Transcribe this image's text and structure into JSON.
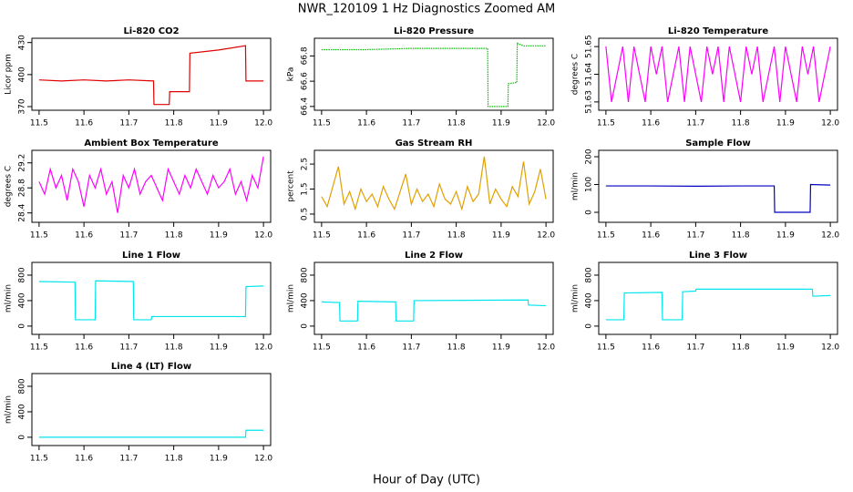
{
  "title": "NWR_120109  1 Hz Diagnostics Zoomed AM",
  "xlabel": "Hour of Day (UTC)",
  "chart_data": [
    {
      "type": "line",
      "title": "Li-820 CO2",
      "ylabel": "Licor ppm",
      "color": "#e00000",
      "x": [
        11.5,
        11.55,
        11.6,
        11.65,
        11.7,
        11.755,
        11.756,
        11.79,
        11.791,
        11.835,
        11.836,
        11.9,
        11.96,
        11.961,
        12.0
      ],
      "values": [
        395,
        394,
        395,
        394,
        395,
        394,
        372,
        372,
        384,
        384,
        420,
        423,
        427,
        394,
        394
      ],
      "xlim": [
        11.484,
        12.016
      ],
      "xticks": [
        11.5,
        11.6,
        11.7,
        11.8,
        11.9,
        {
          "value": 12,
          "label": "12.0"
        }
      ],
      "ylim": [
        366.6,
        434
      ],
      "yticks": [
        370,
        400,
        430
      ]
    },
    {
      "type": "line",
      "title": "Li-820 Pressure",
      "ylabel": "kPa",
      "color": "#00c000",
      "line_style": "dotted",
      "x": [
        11.5,
        11.6,
        11.7,
        11.8,
        11.87,
        11.871,
        11.915,
        11.916,
        11.935,
        11.936,
        11.95,
        12.0
      ],
      "values": [
        66.85,
        66.85,
        66.86,
        66.86,
        66.86,
        66.4,
        66.4,
        66.58,
        66.59,
        66.9,
        66.88,
        66.88
      ],
      "xlim": [
        11.484,
        12.016
      ],
      "xticks": [
        11.5,
        11.6,
        11.7,
        11.8,
        11.9,
        {
          "value": 12,
          "label": "12.0"
        }
      ],
      "ylim": [
        66.37,
        66.94
      ],
      "yticks": [
        66.4,
        66.6,
        66.8
      ]
    },
    {
      "type": "line",
      "title": "Li-820 Temperature",
      "ylabel": "degrees C",
      "color": "#ff00ff",
      "x": [
        11.5,
        11.5125,
        11.525,
        11.5375,
        11.55,
        11.5625,
        11.575,
        11.5875,
        11.6,
        11.6125,
        11.625,
        11.6375,
        11.65,
        11.6625,
        11.675,
        11.6875,
        11.7,
        11.7125,
        11.725,
        11.7375,
        11.75,
        11.7625,
        11.775,
        11.7875,
        11.8,
        11.8125,
        11.825,
        11.8375,
        11.85,
        11.8625,
        11.875,
        11.8875,
        11.9,
        11.9125,
        11.925,
        11.9375,
        11.95,
        11.9625,
        11.975,
        11.9875,
        12.0
      ],
      "values": [
        51.65,
        51.63,
        51.64,
        51.65,
        51.63,
        51.65,
        51.64,
        51.63,
        51.65,
        51.64,
        51.65,
        51.63,
        51.64,
        51.65,
        51.63,
        51.65,
        51.64,
        51.63,
        51.65,
        51.64,
        51.65,
        51.63,
        51.65,
        51.64,
        51.63,
        51.65,
        51.64,
        51.65,
        51.63,
        51.64,
        51.65,
        51.63,
        51.65,
        51.64,
        51.63,
        51.65,
        51.64,
        51.65,
        51.63,
        51.64,
        51.65
      ],
      "xlim": [
        11.484,
        12.016
      ],
      "xticks": [
        11.5,
        11.6,
        11.7,
        11.8,
        11.9,
        {
          "value": 12,
          "label": "12.0"
        }
      ],
      "ylim": [
        51.627,
        51.653
      ],
      "yticks": [
        51.63,
        51.64,
        51.65
      ]
    },
    {
      "type": "line",
      "title": "Ambient Box Temperature",
      "ylabel": "degrees C",
      "color": "#ff00ff",
      "x": [
        11.5,
        11.5125,
        11.525,
        11.5375,
        11.55,
        11.5625,
        11.575,
        11.5875,
        11.6,
        11.6125,
        11.625,
        11.6375,
        11.65,
        11.6625,
        11.675,
        11.6875,
        11.7,
        11.7125,
        11.725,
        11.7375,
        11.75,
        11.7625,
        11.775,
        11.7875,
        11.8,
        11.8125,
        11.825,
        11.8375,
        11.85,
        11.8625,
        11.875,
        11.8875,
        11.9,
        11.9125,
        11.925,
        11.9375,
        11.95,
        11.9625,
        11.975,
        11.9875,
        12.0
      ],
      "values": [
        28.9,
        28.7,
        29.1,
        28.8,
        29.0,
        28.6,
        29.1,
        28.9,
        28.5,
        29.0,
        28.8,
        29.1,
        28.7,
        28.9,
        28.4,
        29.0,
        28.8,
        29.1,
        28.7,
        28.9,
        29.0,
        28.8,
        28.6,
        29.1,
        28.9,
        28.7,
        29.0,
        28.8,
        29.1,
        28.9,
        28.7,
        29.0,
        28.8,
        28.9,
        29.1,
        28.7,
        28.9,
        28.6,
        29.0,
        28.8,
        29.3
      ],
      "xlim": [
        11.484,
        12.016
      ],
      "xticks": [
        11.5,
        11.6,
        11.7,
        11.8,
        11.9,
        {
          "value": 12,
          "label": "12.0"
        }
      ],
      "ylim": [
        28.25,
        29.4
      ],
      "yticks": [
        28.4,
        28.8,
        29.2
      ]
    },
    {
      "type": "line",
      "title": "Gas Stream RH",
      "ylabel": "percent",
      "color": "#e0a000",
      "x": [
        11.5,
        11.5125,
        11.525,
        11.5375,
        11.55,
        11.5625,
        11.575,
        11.5875,
        11.6,
        11.6125,
        11.625,
        11.6375,
        11.65,
        11.6625,
        11.675,
        11.6875,
        11.7,
        11.7125,
        11.725,
        11.7375,
        11.75,
        11.7625,
        11.775,
        11.7875,
        11.8,
        11.8125,
        11.825,
        11.8375,
        11.85,
        11.8625,
        11.875,
        11.8875,
        11.9,
        11.9125,
        11.925,
        11.9375,
        11.95,
        11.9625,
        11.975,
        11.9875,
        12.0
      ],
      "values": [
        1.2,
        0.8,
        1.6,
        2.4,
        0.9,
        1.4,
        0.7,
        1.5,
        1.0,
        1.3,
        0.8,
        1.6,
        1.1,
        0.7,
        1.4,
        2.1,
        0.9,
        1.5,
        1.0,
        1.3,
        0.8,
        1.7,
        1.1,
        0.9,
        1.4,
        0.7,
        1.6,
        1.0,
        1.3,
        2.8,
        0.9,
        1.5,
        1.1,
        0.8,
        1.6,
        1.2,
        2.6,
        0.9,
        1.4,
        2.3,
        1.1
      ],
      "xlim": [
        11.484,
        12.016
      ],
      "xticks": [
        11.5,
        11.6,
        11.7,
        11.8,
        11.9,
        {
          "value": 12,
          "label": "12.0"
        }
      ],
      "ylim": [
        0.17,
        3.05
      ],
      "yticks": [
        0.5,
        1.5,
        2.5
      ]
    },
    {
      "type": "line",
      "title": "Sample Flow",
      "ylabel": "ml/min",
      "color": "#0000c0",
      "x": [
        11.5,
        11.6,
        11.7,
        11.8,
        11.875,
        11.876,
        11.955,
        11.956,
        12.0
      ],
      "values": [
        95,
        95,
        94,
        95,
        95,
        0,
        0,
        100,
        98
      ],
      "xlim": [
        11.484,
        12.016
      ],
      "xticks": [
        11.5,
        11.6,
        11.7,
        11.8,
        11.9,
        {
          "value": 12,
          "label": "12.0"
        }
      ],
      "ylim": [
        -36,
        223
      ],
      "yticks": [
        0,
        100,
        200
      ]
    },
    {
      "type": "line",
      "title": "Line 1 Flow",
      "ylabel": "ml/min",
      "color": "#00e5ee",
      "x": [
        11.5,
        11.58,
        11.581,
        11.625,
        11.626,
        11.71,
        11.711,
        11.75,
        11.751,
        11.96,
        11.961,
        12.0
      ],
      "values": [
        700,
        690,
        100,
        100,
        710,
        700,
        100,
        100,
        150,
        150,
        620,
        630
      ],
      "xlim": [
        11.484,
        12.016
      ],
      "xticks": [
        11.5,
        11.6,
        11.7,
        11.8,
        11.9,
        {
          "value": 12,
          "label": "12.0"
        }
      ],
      "ylim": [
        -130,
        1000
      ],
      "yticks": [
        0,
        400,
        800
      ]
    },
    {
      "type": "line",
      "title": "Line 2 Flow",
      "ylabel": "ml/min",
      "color": "#00e5ee",
      "x": [
        11.5,
        11.54,
        11.541,
        11.58,
        11.581,
        11.665,
        11.666,
        11.705,
        11.706,
        11.96,
        11.961,
        12.0
      ],
      "values": [
        380,
        370,
        80,
        80,
        390,
        380,
        80,
        80,
        400,
        410,
        330,
        320
      ],
      "xlim": [
        11.484,
        12.016
      ],
      "xticks": [
        11.5,
        11.6,
        11.7,
        11.8,
        11.9,
        {
          "value": 12,
          "label": "12.0"
        }
      ],
      "ylim": [
        -130,
        1000
      ],
      "yticks": [
        0,
        400,
        800
      ]
    },
    {
      "type": "line",
      "title": "Line 3 Flow",
      "ylabel": "ml/min",
      "color": "#00e5ee",
      "x": [
        11.5,
        11.54,
        11.541,
        11.625,
        11.626,
        11.67,
        11.671,
        11.7,
        11.701,
        11.96,
        11.961,
        12.0
      ],
      "values": [
        100,
        100,
        520,
        530,
        100,
        100,
        540,
        550,
        580,
        580,
        470,
        480
      ],
      "xlim": [
        11.484,
        12.016
      ],
      "xticks": [
        11.5,
        11.6,
        11.7,
        11.8,
        11.9,
        {
          "value": 12,
          "label": "12.0"
        }
      ],
      "ylim": [
        -130,
        1000
      ],
      "yticks": [
        0,
        400,
        800
      ]
    },
    {
      "type": "line",
      "title": "Line 4 (LT) Flow",
      "ylabel": "ml/min",
      "color": "#00e5ee",
      "x": [
        11.5,
        11.96,
        11.961,
        12.0
      ],
      "values": [
        0,
        0,
        110,
        110
      ],
      "xlim": [
        11.484,
        12.016
      ],
      "xticks": [
        11.5,
        11.6,
        11.7,
        11.8,
        11.9,
        {
          "value": 12,
          "label": "12.0"
        }
      ],
      "ylim": [
        -130,
        1000
      ],
      "yticks": [
        0,
        400,
        800
      ]
    }
  ]
}
